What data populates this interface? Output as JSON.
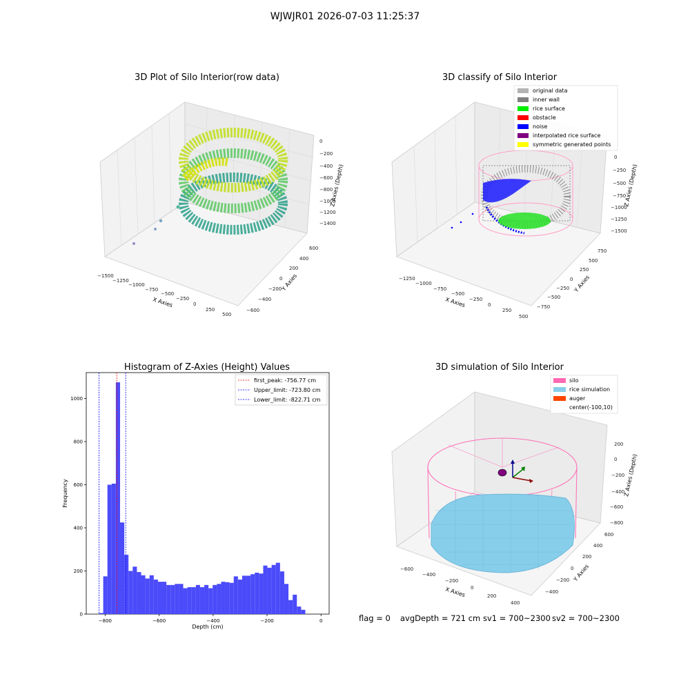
{
  "figure": {
    "suptitle": "WJWJR01 2026-07-03 11:25:37",
    "footer": {
      "flag": "flag = 0",
      "avg_depth": "avgDepth = 721 cm",
      "sv1": "sv1 = 700~2300",
      "sv2": "sv2 = 700~2300"
    }
  },
  "panels": {
    "raw": {
      "title": "3D Plot of Silo Interior(row data)",
      "xlabel": "X Axies",
      "ylabel": "Y Axies",
      "zlabel": "Z Axies (Depth)",
      "xticks": [
        "−1500",
        "−1250",
        "−1000",
        "−750",
        "−500",
        "−250",
        "0",
        "250",
        "500"
      ],
      "yticks": [
        "600",
        "400",
        "200",
        "0",
        "−200",
        "−400",
        "−600"
      ],
      "zticks": [
        "0",
        "−200",
        "−400",
        "−600",
        "−800",
        "−1000",
        "−1200",
        "−1400"
      ]
    },
    "classify": {
      "title": "3D classify of Silo Interior",
      "xlabel": "X Axies",
      "ylabel": "Y Axies",
      "zlabel": "Z Axies (Depth)",
      "xticks": [
        "−1250",
        "−1000",
        "−750",
        "−500",
        "−250",
        "0",
        "250",
        "500"
      ],
      "yticks": [
        "750",
        "500",
        "250",
        "0",
        "−250",
        "−500",
        "−750"
      ],
      "zticks": [
        "0",
        "−250",
        "−500",
        "−750",
        "−1000",
        "−1250",
        "−1500"
      ],
      "legend": [
        {
          "label": "original data",
          "color": "#b3b3b3"
        },
        {
          "label": "inner wall",
          "color": "#808080"
        },
        {
          "label": "rice surface",
          "color": "#00ee00"
        },
        {
          "label": "obstacle",
          "color": "#ff0000"
        },
        {
          "label": "noise",
          "color": "#0000ff"
        },
        {
          "label": "interpolated rice surface",
          "color": "#800080"
        },
        {
          "label": "symmetric generated points",
          "color": "#ffff00"
        }
      ]
    },
    "simulation": {
      "title": "3D simulation of Silo Interior",
      "xlabel": "X Axies",
      "ylabel": "Y Axies",
      "zlabel": "Z Axies (Depth)",
      "xticks": [
        "−600",
        "−400",
        "−200",
        "0",
        "200",
        "400"
      ],
      "yticks": [
        "600",
        "400",
        "200",
        "0",
        "−200",
        "−400"
      ],
      "zticks": [
        "200",
        "0",
        "−200",
        "−400",
        "−600",
        "−800"
      ],
      "legend": [
        {
          "label": "silo",
          "color": "#ff69b4"
        },
        {
          "label": "rice simulation",
          "color": "#87ceeb"
        },
        {
          "label": "auger",
          "color": "#ff4500"
        },
        {
          "label": "center(-100,10)",
          "color": ""
        }
      ]
    }
  },
  "chart_data": [
    {
      "type": "bar",
      "title": "Histogram of Z-Axies (Height) Values",
      "xlabel": "Depth (cm)",
      "ylabel": "Frequency",
      "xlim": [
        -870,
        30
      ],
      "ylim": [
        0,
        1120
      ],
      "xticks": [
        -800,
        -600,
        -400,
        -200,
        0
      ],
      "yticks": [
        0,
        200,
        400,
        600,
        800,
        1000
      ],
      "bin_width": 15.6,
      "bar_color": "#4b4bfa",
      "bins": [
        [
          -822.7,
          5
        ],
        [
          -807.1,
          175
        ],
        [
          -791.5,
          600
        ],
        [
          -775.9,
          605
        ],
        [
          -760.3,
          1075
        ],
        [
          -744.7,
          425
        ],
        [
          -729.1,
          275
        ],
        [
          -713.5,
          200
        ],
        [
          -697.9,
          220
        ],
        [
          -682.3,
          195
        ],
        [
          -666.7,
          180
        ],
        [
          -651.1,
          165
        ],
        [
          -635.5,
          180
        ],
        [
          -619.9,
          160
        ],
        [
          -604.3,
          150
        ],
        [
          -588.7,
          150
        ],
        [
          -573.1,
          135
        ],
        [
          -557.5,
          135
        ],
        [
          -541.9,
          140
        ],
        [
          -526.3,
          140
        ],
        [
          -510.7,
          120
        ],
        [
          -495.1,
          125
        ],
        [
          -479.5,
          125
        ],
        [
          -463.9,
          135
        ],
        [
          -448.3,
          125
        ],
        [
          -432.7,
          135
        ],
        [
          -417.1,
          120
        ],
        [
          -401.5,
          135
        ],
        [
          -385.9,
          140
        ],
        [
          -370.3,
          150
        ],
        [
          -354.7,
          148
        ],
        [
          -339.1,
          145
        ],
        [
          -323.5,
          175
        ],
        [
          -307.9,
          160
        ],
        [
          -292.3,
          178
        ],
        [
          -276.7,
          178
        ],
        [
          -261.1,
          185
        ],
        [
          -245.5,
          192
        ],
        [
          -229.9,
          188
        ],
        [
          -214.3,
          225
        ],
        [
          -198.7,
          215
        ],
        [
          -183.1,
          228
        ],
        [
          -167.5,
          238
        ],
        [
          -151.9,
          198
        ],
        [
          -136.3,
          140
        ],
        [
          -120.7,
          65
        ],
        [
          -105.1,
          90
        ],
        [
          -89.5,
          35
        ],
        [
          -73.9,
          20
        ]
      ],
      "vlines": [
        {
          "label": "first_peak: -756.77 cm",
          "x": -756.77,
          "color": "#ff0000"
        },
        {
          "label": "Upper_limit: -723.80 cm",
          "x": -723.8,
          "color": "#0000ff"
        },
        {
          "label": "Lower_limit: -822.71 cm",
          "x": -822.71,
          "color": "#0000ff"
        }
      ]
    }
  ]
}
